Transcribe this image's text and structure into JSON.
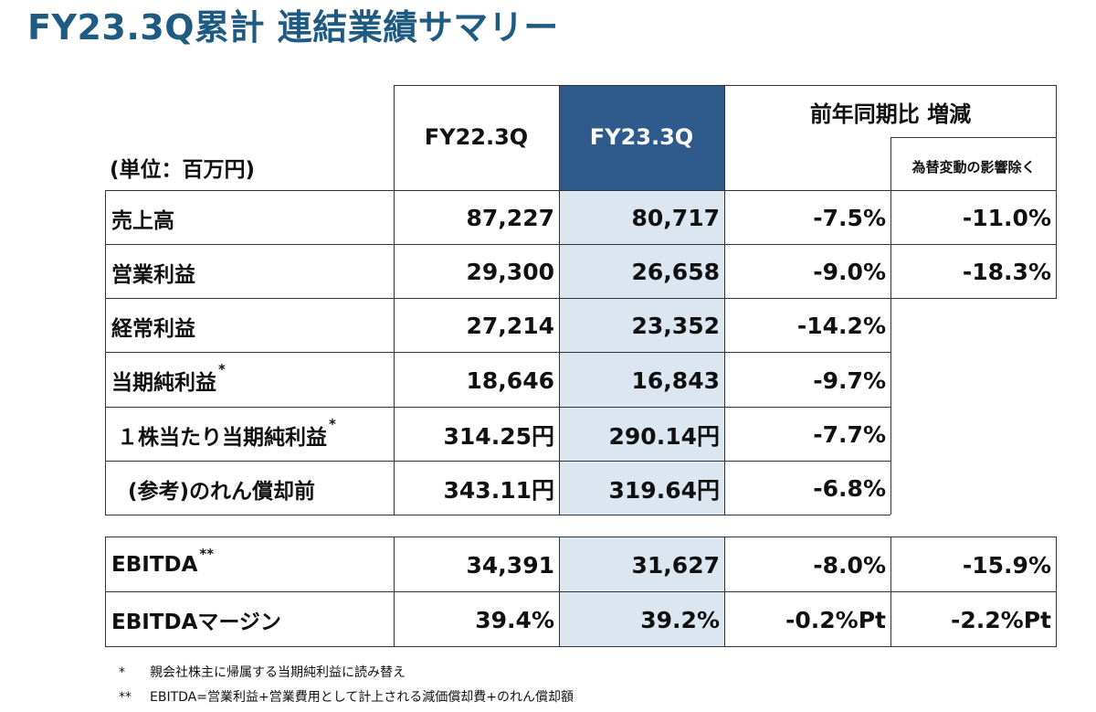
{
  "title": "FY23.3Q累計 連結業績サマリー",
  "unit_label": "(単位：百万円)",
  "columns": {
    "prev": "FY22.3Q",
    "curr": "FY23.3Q",
    "yoy": "前年同期比 増減",
    "fx": "為替変動の影響除く"
  },
  "rows": [
    {
      "label": "売上高",
      "mark": "",
      "prev": "87,227",
      "curr": "80,717",
      "yoy": "-7.5%",
      "fx": "-11.0%"
    },
    {
      "label": "営業利益",
      "mark": "",
      "prev": "29,300",
      "curr": "26,658",
      "yoy": "-9.0%",
      "fx": "-18.3%"
    },
    {
      "label": "経常利益",
      "mark": "",
      "prev": "27,214",
      "curr": "23,352",
      "yoy": "-14.2%",
      "fx": ""
    },
    {
      "label": "当期純利益",
      "mark": "*",
      "prev": "18,646",
      "curr": "16,843",
      "yoy": "-9.7%",
      "fx": ""
    },
    {
      "label": "１株当たり当期純利益",
      "mark": "*",
      "prev": "314.25円",
      "curr": "290.14円",
      "yoy": "-7.7%",
      "fx": ""
    },
    {
      "label": "(参考)のれん償却前",
      "mark": "",
      "prev": "343.11円",
      "curr": "319.64円",
      "yoy": "-6.8%",
      "fx": ""
    }
  ],
  "ebitda_rows": [
    {
      "label": "EBITDA",
      "mark": "**",
      "prev": "34,391",
      "curr": "31,627",
      "yoy": "-8.0%",
      "fx": "-15.9%"
    },
    {
      "label": "EBITDAマージン",
      "mark": "",
      "prev": "39.4%",
      "curr": "39.2%",
      "yoy": "-0.2%Pt",
      "fx": "-2.2%Pt"
    }
  ],
  "footnotes": [
    {
      "mark": "*",
      "text": "親会社株主に帰属する当期純利益に読み替え"
    },
    {
      "mark": "**",
      "text": "EBITDA=営業利益+営業費用として計上される減価償却費+のれん償却額"
    }
  ],
  "colors": {
    "title": "#1f5a82",
    "header_fill": "#2e5a8c",
    "current_column_fill": "#dce6f1"
  }
}
